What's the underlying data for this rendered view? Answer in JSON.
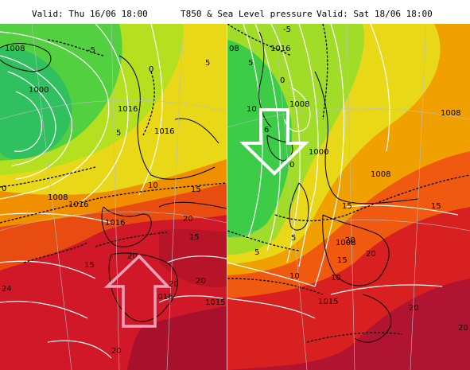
{
  "header": {
    "left_valid": "Valid: Thu 16/06 18:00",
    "title": "T850 & Sea Level pressure",
    "right_valid": "Valid: Sat 18/06 18:00"
  },
  "colors": {
    "cold_green": "#2ec84a",
    "mid_green": "#8fdc2a",
    "yellow": "#e8e81a",
    "orange": "#f0a000",
    "red": "#e02020",
    "dark_red": "#a0102a"
  },
  "left_panel": {
    "isobar_labels": [
      "1008",
      "-5",
      "1000",
      "0",
      "1016",
      "5",
      "1016",
      "5",
      "10",
      "15",
      "1016",
      "1008",
      "1016",
      "20",
      "20",
      "15",
      "15",
      "20",
      "1016",
      "20",
      "1015",
      "20",
      "0",
      "24"
    ],
    "arrow": {
      "direction": "up",
      "color": "pink"
    }
  },
  "right_panel": {
    "isobar_labels": [
      "08",
      "1016",
      "-5",
      "5",
      "0",
      "1008",
      "10",
      "6",
      "1000",
      "0",
      "1008",
      "1008",
      "5",
      "15",
      "20",
      "1008",
      "20",
      "15",
      "10",
      "10",
      "1015",
      "20",
      "5",
      "15",
      "20"
    ],
    "arrow": {
      "direction": "down",
      "color": "white"
    }
  }
}
